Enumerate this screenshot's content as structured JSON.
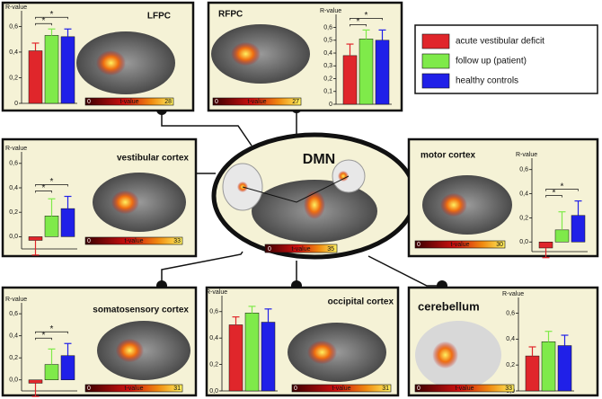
{
  "legend": [
    {
      "name": "acute vestibular deficit",
      "color": "#e0262b"
    },
    {
      "name": "follow up (patient)",
      "color": "#7fea4a"
    },
    {
      "name": "healthy controls",
      "color": "#2020e8"
    }
  ],
  "center": {
    "title": "DMN",
    "colorbar_ticks": [
      0,
      35
    ],
    "colorbar_label": "t-value"
  },
  "chart_data": [
    {
      "type": "bar",
      "title": "LFPC",
      "y_label": "R-value",
      "values": [
        0.41,
        0.53,
        0.52
      ],
      "errors": [
        0.06,
        0.05,
        0.06
      ],
      "ylim": [
        0,
        0.68
      ],
      "yticks": [
        0,
        {
          "value": 0.2,
          "label": "0,2"
        },
        {
          "value": 0.4,
          "label": "0,4"
        },
        {
          "value": 0.6,
          "label": "0,6"
        }
      ],
      "annotations": [
        "*",
        "*"
      ],
      "colorbar_ticks": [
        0,
        28
      ],
      "colorbar_label": "t-value"
    },
    {
      "type": "bar",
      "title": "RFPC",
      "y_label": "R-value",
      "values": [
        0.38,
        0.51,
        0.5
      ],
      "errors": [
        0.09,
        0.07,
        0.08
      ],
      "ylim": [
        0,
        0.66
      ],
      "yticks": [
        0,
        {
          "value": 0.1,
          "label": "0,1"
        },
        {
          "value": 0.2,
          "label": "0,2"
        },
        {
          "value": 0.3,
          "label": "0,3"
        },
        {
          "value": 0.4,
          "label": "0,4"
        },
        {
          "value": 0.5,
          "label": "0,5"
        },
        {
          "value": 0.6,
          "label": "0,6"
        }
      ],
      "annotations": [
        "*",
        "*"
      ],
      "colorbar_ticks": [
        0,
        27
      ],
      "colorbar_label": "t-value"
    },
    {
      "type": "bar",
      "title": "vestibular cortex",
      "y_label": "R-value",
      "values": [
        -0.03,
        0.17,
        0.23
      ],
      "errors": [
        0.12,
        0.14,
        0.1
      ],
      "ylim": [
        -0.1,
        0.65
      ],
      "yticks": [
        {
          "value": 0,
          "label": "0,0"
        },
        {
          "value": 0.2,
          "label": "0,2"
        },
        {
          "value": 0.4,
          "label": "0,4"
        },
        {
          "value": 0.6,
          "label": "0,6"
        }
      ],
      "annotations": [
        "*",
        "*"
      ],
      "colorbar_ticks": [
        0,
        33
      ],
      "colorbar_label": "t-value"
    },
    {
      "type": "bar",
      "title": "motor cortex",
      "y_label": "R-value",
      "values": [
        -0.05,
        0.1,
        0.22
      ],
      "errors": [
        0.08,
        0.15,
        0.12
      ],
      "ylim": [
        -0.08,
        0.65
      ],
      "yticks": [
        {
          "value": 0,
          "label": "0,0"
        },
        {
          "value": 0.2,
          "label": "0,2"
        },
        {
          "value": 0.4,
          "label": "0,4"
        },
        {
          "value": 0.6,
          "label": "0,6"
        }
      ],
      "annotations": [
        "*",
        "*"
      ],
      "colorbar_ticks": [
        0,
        30
      ],
      "colorbar_label": "t-value"
    },
    {
      "type": "bar",
      "title": "somatosensory cortex",
      "y_label": "R-value",
      "values": [
        -0.03,
        0.14,
        0.22
      ],
      "errors": [
        0.12,
        0.14,
        0.11
      ],
      "ylim": [
        -0.1,
        0.65
      ],
      "yticks": [
        {
          "value": 0,
          "label": "0,0"
        },
        {
          "value": 0.2,
          "label": "0,2"
        },
        {
          "value": 0.4,
          "label": "0,4"
        },
        {
          "value": 0.6,
          "label": "0,6"
        }
      ],
      "annotations": [
        "*",
        "*"
      ],
      "colorbar_ticks": [
        0,
        31
      ],
      "colorbar_label": "t-value"
    },
    {
      "type": "bar",
      "title": "occipital cortex",
      "y_label": "R-value",
      "values": [
        0.5,
        0.59,
        0.52
      ],
      "errors": [
        0.06,
        0.05,
        0.1
      ],
      "ylim": [
        0,
        0.68
      ],
      "yticks": [
        {
          "value": 0,
          "label": "0,0"
        },
        {
          "value": 0.2,
          "label": "0,2"
        },
        {
          "value": 0.4,
          "label": "0,4"
        },
        {
          "value": 0.6,
          "label": "0,6"
        }
      ],
      "annotations": [],
      "colorbar_ticks": [
        0,
        31
      ],
      "colorbar_label": "t-value"
    },
    {
      "type": "bar",
      "title": "cerebellum",
      "y_label": "R-value",
      "values": [
        0.27,
        0.38,
        0.35
      ],
      "errors": [
        0.07,
        0.08,
        0.08
      ],
      "ylim": [
        0,
        0.68
      ],
      "yticks": [
        {
          "value": 0,
          "label": "0,0"
        },
        {
          "value": 0.2,
          "label": "0,2"
        },
        {
          "value": 0.4,
          "label": "0,4"
        },
        {
          "value": 0.6,
          "label": "0,6"
        }
      ],
      "annotations": [],
      "colorbar_ticks": [
        0,
        33
      ],
      "colorbar_label": "t-value"
    }
  ]
}
